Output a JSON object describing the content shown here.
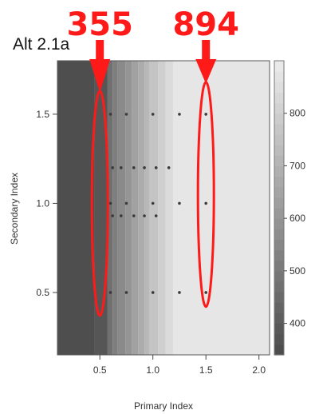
{
  "chart_data": {
    "type": "heatmap",
    "title": "Alt 2.1a",
    "xlabel": "Primary Index",
    "ylabel": "Secondary Index",
    "xlim": [
      0.1,
      2.1
    ],
    "ylim": [
      0.15,
      1.8
    ],
    "x_ticks": [
      0.5,
      1.0,
      1.5,
      2.0
    ],
    "x_tick_labels": [
      "0.5",
      "1.0",
      "1.5",
      "2.0"
    ],
    "y_ticks": [
      0.5,
      1.0,
      1.5
    ],
    "y_tick_labels": [
      "0.5",
      "1.0",
      "1.5"
    ],
    "x_breaks": [
      0.1,
      0.45,
      0.57,
      0.62,
      0.67,
      0.74,
      0.8,
      0.86,
      0.92,
      0.97,
      1.05,
      1.12,
      1.19,
      2.1
    ],
    "z_values": [
      355,
      380,
      470,
      520,
      560,
      600,
      640,
      680,
      720,
      760,
      800,
      840,
      880
    ],
    "colorbar": {
      "zlim": [
        340,
        900
      ],
      "ticks": [
        400,
        500,
        600,
        700,
        800
      ],
      "tick_labels": [
        "400",
        "500",
        "600",
        "700",
        "800"
      ]
    },
    "points": [
      {
        "x": 0.6,
        "y": 1.5
      },
      {
        "x": 0.75,
        "y": 1.5
      },
      {
        "x": 1.0,
        "y": 1.5
      },
      {
        "x": 1.25,
        "y": 1.5
      },
      {
        "x": 1.5,
        "y": 1.5
      },
      {
        "x": 0.62,
        "y": 1.2
      },
      {
        "x": 0.7,
        "y": 1.2
      },
      {
        "x": 0.82,
        "y": 1.2
      },
      {
        "x": 0.92,
        "y": 1.2
      },
      {
        "x": 1.03,
        "y": 1.2
      },
      {
        "x": 1.15,
        "y": 1.2
      },
      {
        "x": 0.6,
        "y": 1.0
      },
      {
        "x": 0.75,
        "y": 1.0
      },
      {
        "x": 1.0,
        "y": 1.0
      },
      {
        "x": 1.25,
        "y": 1.0
      },
      {
        "x": 1.5,
        "y": 1.0
      },
      {
        "x": 0.62,
        "y": 0.93
      },
      {
        "x": 0.7,
        "y": 0.93
      },
      {
        "x": 0.82,
        "y": 0.93
      },
      {
        "x": 0.92,
        "y": 0.93
      },
      {
        "x": 1.03,
        "y": 0.93
      },
      {
        "x": 0.6,
        "y": 0.5
      },
      {
        "x": 0.75,
        "y": 0.5
      },
      {
        "x": 1.0,
        "y": 0.5
      },
      {
        "x": 1.25,
        "y": 0.5
      },
      {
        "x": 1.5,
        "y": 0.5
      }
    ],
    "annotations": [
      {
        "label": "355",
        "x": 0.5,
        "y_center": 1.0,
        "y_half_height": 0.63
      },
      {
        "label": "894",
        "x": 1.5,
        "y_center": 1.05,
        "y_half_height": 0.63
      }
    ],
    "grid": false,
    "legend": "colorbar-right",
    "colors": {
      "low": "#4a4a4a",
      "high": "#ececec",
      "annotation": "#ff1a1a"
    }
  }
}
